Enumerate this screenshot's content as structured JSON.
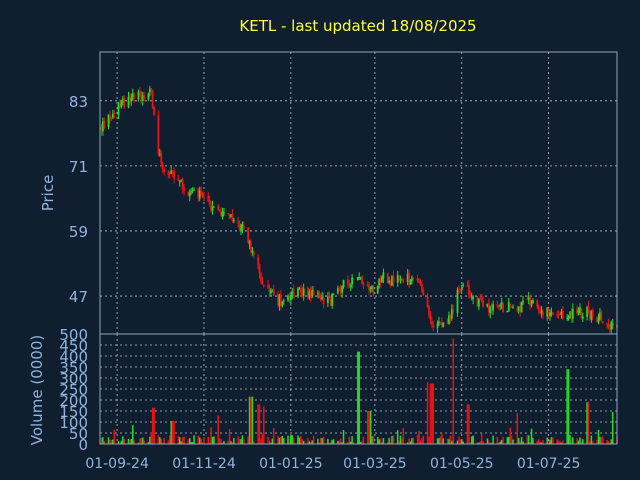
{
  "chart_data": [
    {
      "type": "candlestick",
      "title": "KETL - last updated 18/08/2025",
      "ylabel": "Price",
      "yticks": [
        83,
        71,
        59,
        47
      ],
      "ylim": [
        40,
        92
      ],
      "xticks": [
        "01-09-24",
        "01-11-24",
        "01-01-25",
        "01-03-25",
        "01-05-25",
        "01-07-25"
      ],
      "xlim": [
        "2024-08-20",
        "2025-08-18"
      ],
      "grid": true,
      "close_path": [
        [
          "2024-08-21",
          78
        ],
        [
          "2024-08-27",
          80
        ],
        [
          "2024-09-02",
          82
        ],
        [
          "2024-09-06",
          83
        ],
        [
          "2024-09-10",
          84
        ],
        [
          "2024-09-15",
          84
        ],
        [
          "2024-09-20",
          84
        ],
        [
          "2024-09-25",
          85
        ],
        [
          "2024-09-27",
          80
        ],
        [
          "2024-09-30",
          74
        ],
        [
          "2024-10-04",
          70
        ],
        [
          "2024-10-10",
          69
        ],
        [
          "2024-10-18",
          67
        ],
        [
          "2024-10-25",
          66
        ],
        [
          "2024-11-01",
          65
        ],
        [
          "2024-11-08",
          63
        ],
        [
          "2024-11-15",
          62
        ],
        [
          "2024-11-22",
          61
        ],
        [
          "2024-11-30",
          59
        ],
        [
          "2024-12-06",
          54
        ],
        [
          "2024-12-10",
          51
        ],
        [
          "2024-12-15",
          49
        ],
        [
          "2024-12-22",
          46
        ],
        [
          "2024-12-28",
          47
        ],
        [
          "2025-01-05",
          48
        ],
        [
          "2025-01-12",
          48
        ],
        [
          "2025-01-20",
          47
        ],
        [
          "2025-01-28",
          46
        ],
        [
          "2025-02-03",
          48
        ],
        [
          "2025-02-10",
          50
        ],
        [
          "2025-02-18",
          50
        ],
        [
          "2025-02-25",
          49
        ],
        [
          "2025-03-01",
          48
        ],
        [
          "2025-03-06",
          51
        ],
        [
          "2025-03-12",
          50
        ],
        [
          "2025-03-20",
          50
        ],
        [
          "2025-03-28",
          50
        ],
        [
          "2025-04-03",
          48
        ],
        [
          "2025-04-07",
          44
        ],
        [
          "2025-04-10",
          42
        ],
        [
          "2025-04-15",
          43
        ],
        [
          "2025-04-20",
          42
        ],
        [
          "2025-04-25",
          44
        ],
        [
          "2025-04-28",
          49
        ],
        [
          "2025-05-05",
          48
        ],
        [
          "2025-05-12",
          46
        ],
        [
          "2025-05-20",
          45
        ],
        [
          "2025-06-01",
          45
        ],
        [
          "2025-06-10",
          45
        ],
        [
          "2025-06-20",
          46
        ],
        [
          "2025-06-28",
          44
        ],
        [
          "2025-07-05",
          43
        ],
        [
          "2025-07-12",
          43
        ],
        [
          "2025-07-20",
          44
        ],
        [
          "2025-07-28",
          44
        ],
        [
          "2025-08-05",
          43
        ],
        [
          "2025-08-12",
          42
        ],
        [
          "2025-08-18",
          42
        ]
      ]
    },
    {
      "type": "bar",
      "ylabel": "Volume (0000)",
      "yticks": [
        0,
        50,
        100,
        150,
        200,
        250,
        300,
        350,
        400,
        450,
        500
      ],
      "ylim": [
        0,
        500
      ],
      "xticks": [
        "01-09-24",
        "01-11-24",
        "01-01-25",
        "01-03-25",
        "01-05-25",
        "01-07-25"
      ],
      "xlim": [
        "2024-08-20",
        "2025-08-18"
      ],
      "grid": true,
      "notable_volumes": [
        [
          "2024-09-27",
          165
        ],
        [
          "2024-10-10",
          105
        ],
        [
          "2024-11-10",
          130
        ],
        [
          "2024-12-04",
          215
        ],
        [
          "2024-12-09",
          180
        ],
        [
          "2024-12-14",
          170
        ],
        [
          "2025-02-17",
          420
        ],
        [
          "2025-02-25",
          150
        ],
        [
          "2025-04-06",
          280
        ],
        [
          "2025-04-10",
          275
        ],
        [
          "2025-04-26",
          480
        ],
        [
          "2025-05-05",
          180
        ],
        [
          "2025-06-08",
          140
        ],
        [
          "2025-07-14",
          340
        ],
        [
          "2025-07-28",
          190
        ],
        [
          "2025-08-16",
          145
        ]
      ]
    }
  ],
  "colors": {
    "background": "#0f1f30",
    "frame": "#8fa3b8",
    "grid": "#b8c4d0",
    "title": "#ffff33",
    "axis_text": "#8fb4e0",
    "up": "#22dd22",
    "down": "#ee1111"
  }
}
